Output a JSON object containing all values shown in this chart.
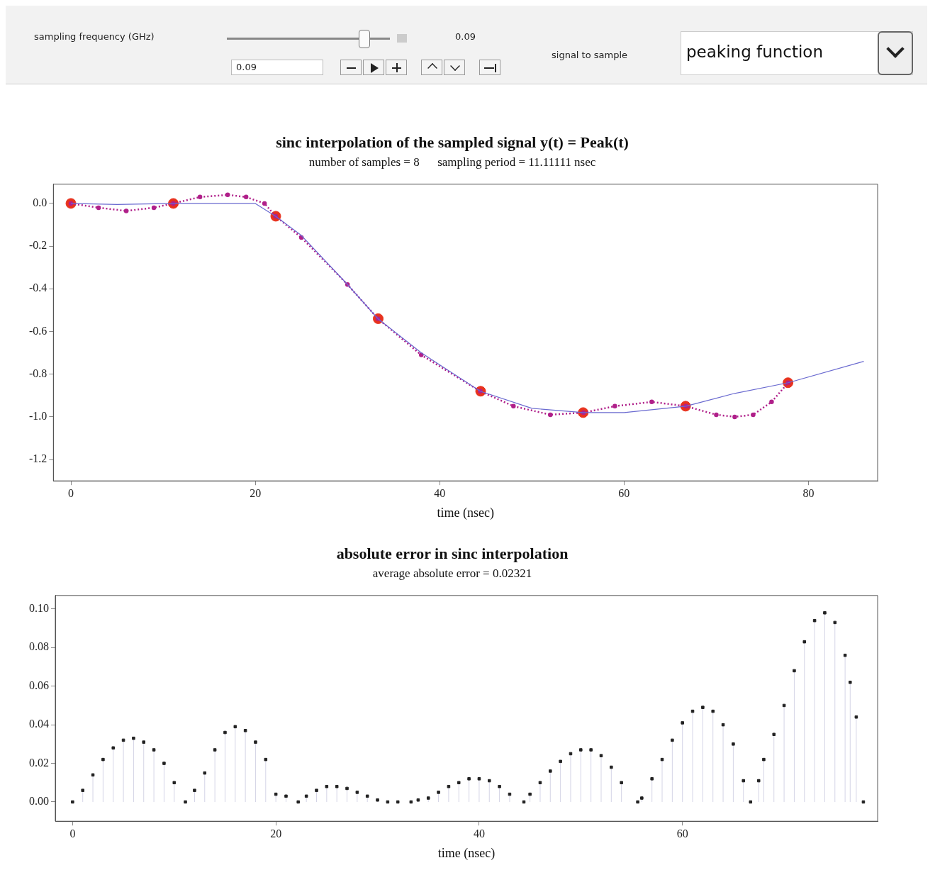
{
  "chart_data": [
    {
      "type": "line",
      "title": "sinc interpolation of the sampled signal y(t) = Peak(t)",
      "subtitle": "number of samples = 8      sampling period = 11.11111 nsec",
      "xlabel": "time (nsec)",
      "annotations": [
        "sampling frequency (GHz)",
        "0.09",
        "0.09",
        "signal to sample",
        "peaking function"
      ],
      "xlim": [
        -1.9,
        87.5
      ],
      "xticks": [
        0,
        20,
        40,
        60,
        80
      ],
      "ylim": [
        -1.3,
        0.09
      ],
      "yticks": [
        {
          "value": 0,
          "label": "0.0"
        },
        {
          "value": -0.2,
          "label": "-0.2"
        },
        {
          "value": -0.4,
          "label": "-0.4"
        },
        {
          "value": -0.6,
          "label": "-0.6"
        },
        {
          "value": -0.8,
          "label": "-0.8"
        },
        {
          "value": -1,
          "label": "-1.0"
        },
        {
          "value": -1.2,
          "label": "-1.2"
        }
      ],
      "grid": false,
      "legend": false,
      "series": [
        {
          "type": "line",
          "color": "#6a6ad0",
          "marker": "none",
          "line_style": "solid",
          "x": [
            0,
            5,
            11.1,
            18,
            20,
            22.2,
            25,
            30,
            33.3,
            38,
            44.4,
            50,
            55.6,
            60,
            66.7,
            72,
            77.8,
            86
          ],
          "values": [
            0,
            -0.005,
            0,
            0,
            0,
            -0.06,
            -0.15,
            -0.38,
            -0.54,
            -0.7,
            -0.88,
            -0.96,
            -0.98,
            -0.98,
            -0.95,
            -0.89,
            -0.84,
            -0.74
          ]
        },
        {
          "type": "line",
          "color": "#b0208a",
          "marker": "circle",
          "line_style": "dotted",
          "x": [
            0,
            3,
            6,
            9,
            11.1,
            14,
            17,
            19,
            21,
            22.2,
            25,
            30,
            33.3,
            38,
            44.4,
            48,
            52,
            55.6,
            59,
            63,
            66.7,
            70,
            72,
            74,
            76,
            77.8
          ],
          "values": [
            0,
            -0.02,
            -0.035,
            -0.02,
            0,
            0.03,
            0.04,
            0.03,
            0,
            -0.06,
            -0.16,
            -0.38,
            -0.54,
            -0.71,
            -0.88,
            -0.95,
            -0.99,
            -0.98,
            -0.95,
            -0.93,
            -0.95,
            -0.99,
            -1,
            -0.99,
            -0.93,
            -0.84
          ]
        },
        {
          "type": "scatter",
          "color": "#e8321e",
          "marker": "circle",
          "x": [
            0,
            11.11,
            22.22,
            33.33,
            44.44,
            55.56,
            66.67,
            77.78
          ],
          "values": [
            0,
            0,
            -0.06,
            -0.54,
            -0.88,
            -0.98,
            -0.95,
            -0.84
          ]
        }
      ]
    },
    {
      "type": "lollipop",
      "title": "absolute error in sinc interpolation",
      "subtitle": "average absolute error = 0.02321",
      "xlabel": "time (nsec)",
      "xlim": [
        -1.7,
        79.2
      ],
      "xticks": [
        0,
        20,
        40,
        60
      ],
      "ylim": [
        -0.01,
        0.107
      ],
      "yticks": [
        {
          "value": 0,
          "label": "0.00"
        },
        {
          "value": 0.02,
          "label": "0.02"
        },
        {
          "value": 0.04,
          "label": "0.04"
        },
        {
          "value": 0.06,
          "label": "0.06"
        },
        {
          "value": 0.08,
          "label": "0.08"
        },
        {
          "value": 0.1,
          "label": "0.10"
        }
      ],
      "grid": false,
      "legend": false,
      "marker": "square",
      "series": [
        {
          "color": "#222222",
          "x": [
            0,
            1,
            2,
            3,
            4,
            5,
            6,
            7,
            8,
            9,
            10,
            11.1,
            12,
            13,
            14,
            15,
            16,
            17,
            18,
            19,
            20,
            21,
            22.2,
            23,
            24,
            25,
            26,
            27,
            28,
            29,
            30,
            31,
            32,
            33.3,
            34,
            35,
            36,
            37,
            38,
            39,
            40,
            41,
            42,
            43,
            44.4,
            45,
            46,
            47,
            48,
            49,
            50,
            51,
            52,
            53,
            54,
            55.6,
            56,
            57,
            58,
            59,
            60,
            61,
            62,
            63,
            64,
            65,
            66,
            66.7,
            67.5,
            68,
            69,
            70,
            71,
            72,
            73,
            74,
            75,
            76,
            76.5,
            77.1,
            77.8
          ],
          "values": [
            0,
            0.006,
            0.014,
            0.022,
            0.028,
            0.032,
            0.033,
            0.031,
            0.027,
            0.02,
            0.01,
            0,
            0.006,
            0.015,
            0.027,
            0.036,
            0.039,
            0.037,
            0.031,
            0.022,
            0.004,
            0.003,
            0,
            0.003,
            0.006,
            0.008,
            0.008,
            0.007,
            0.005,
            0.003,
            0.001,
            0,
            0,
            0,
            0.001,
            0.002,
            0.005,
            0.008,
            0.01,
            0.012,
            0.012,
            0.011,
            0.008,
            0.004,
            0,
            0.004,
            0.01,
            0.016,
            0.021,
            0.025,
            0.027,
            0.027,
            0.024,
            0.018,
            0.01,
            0,
            0.002,
            0.012,
            0.022,
            0.032,
            0.041,
            0.047,
            0.049,
            0.047,
            0.04,
            0.03,
            0.011,
            0,
            0.011,
            0.022,
            0.035,
            0.05,
            0.068,
            0.083,
            0.094,
            0.098,
            0.093,
            0.076,
            0.062,
            0.044,
            0
          ]
        }
      ]
    }
  ]
}
